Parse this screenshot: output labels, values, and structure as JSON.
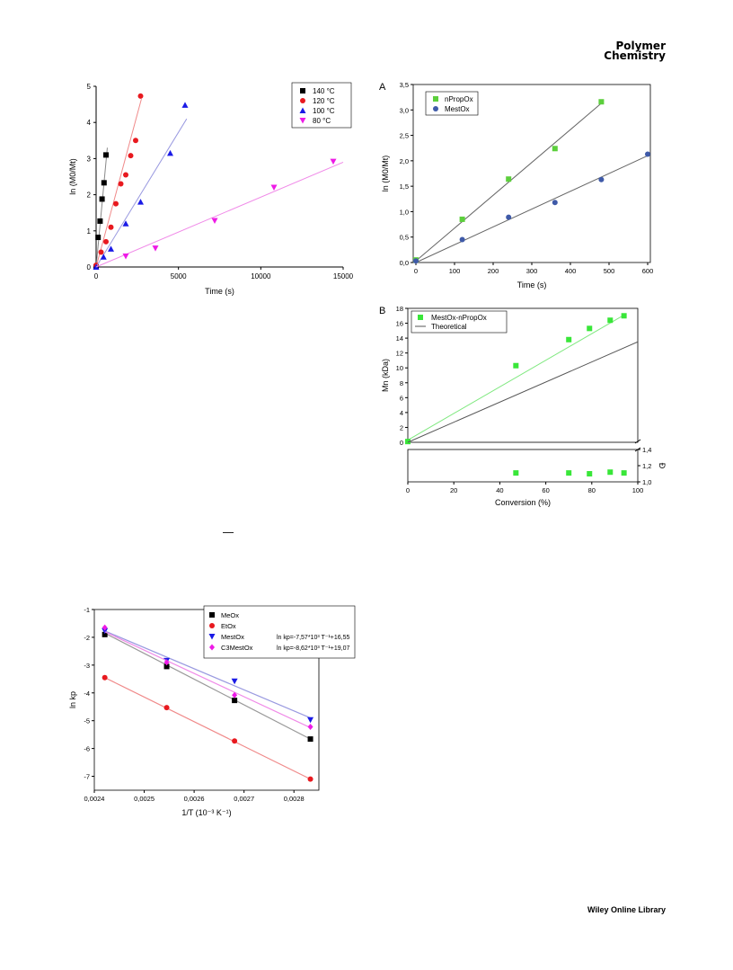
{
  "header": {
    "journal_line1": "Polymer",
    "journal_line2": "Chemistry"
  },
  "footer": {
    "publisher": "Wiley Online Library"
  },
  "chart_data": [
    {
      "id": "c1",
      "type": "scatter",
      "xlabel": "Time (s)",
      "ylabel": "ln (M0/Mt)",
      "xlim": [
        0,
        15000
      ],
      "ylim": [
        0,
        5
      ],
      "xticks": [
        0,
        5000,
        10000,
        15000
      ],
      "yticks": [
        0,
        1,
        2,
        3,
        4,
        5
      ],
      "legend_position": "top-right",
      "series": [
        {
          "name": "140 °C",
          "color": "#000000",
          "line_color": "#888888",
          "marker": "square",
          "x": [
            0,
            120,
            240,
            360,
            480,
            600
          ],
          "y": [
            0.0,
            0.82,
            1.27,
            1.88,
            2.33,
            3.1
          ],
          "fit": [
            [
              0,
              0
            ],
            [
              680,
              3.3
            ]
          ]
        },
        {
          "name": "120 °C",
          "color": "#e8191f",
          "line_color": "#f08a8a",
          "marker": "circle",
          "x": [
            0,
            300,
            600,
            900,
            1200,
            1500,
            1800,
            2100,
            2400,
            2700
          ],
          "y": [
            0.05,
            0.41,
            0.7,
            1.1,
            1.75,
            2.3,
            2.55,
            3.08,
            3.5,
            4.73
          ],
          "fit": [
            [
              0,
              0
            ],
            [
              2750,
              4.65
            ]
          ]
        },
        {
          "name": "100 °C",
          "color": "#1a1ae6",
          "line_color": "#9a9ae0",
          "marker": "triangle",
          "x": [
            0,
            450,
            900,
            1800,
            2700,
            4500,
            5400
          ],
          "y": [
            0.0,
            0.28,
            0.5,
            1.2,
            1.8,
            3.15,
            4.48
          ],
          "fit": [
            [
              0,
              0
            ],
            [
              5500,
              4.1
            ]
          ]
        },
        {
          "name": "80 °C",
          "color": "#ee1ae6",
          "line_color": "#f08ae8",
          "marker": "triangle-down",
          "x": [
            1800,
            3600,
            7200,
            10800,
            14400
          ],
          "y": [
            0.3,
            0.52,
            1.28,
            2.2,
            2.92
          ],
          "fit": [
            [
              0,
              0
            ],
            [
              15000,
              2.9
            ]
          ]
        }
      ]
    },
    {
      "id": "c2",
      "panel_label": "A",
      "type": "scatter",
      "xlabel": "Time (s)",
      "ylabel": "ln (M0/Mt)",
      "xlim": [
        0,
        600
      ],
      "ylim": [
        0,
        3.5
      ],
      "xticks": [
        0,
        100,
        200,
        300,
        400,
        500,
        600
      ],
      "yticks": [
        0,
        0.5,
        1,
        1.5,
        2,
        2.5,
        3,
        3.5
      ],
      "ytick_labels": [
        "0,0",
        "0,5",
        "1,0",
        "1,5",
        "2,0",
        "2,5",
        "3,0",
        "3,5"
      ],
      "legend_position": "top-left",
      "series": [
        {
          "name": "nPropOx",
          "color": "#5ccf3c",
          "line_color": "#666666",
          "marker": "square",
          "x": [
            0,
            120,
            240,
            360,
            480
          ],
          "y": [
            0.05,
            0.85,
            1.64,
            2.24,
            3.16
          ],
          "fit": [
            [
              0,
              0.03
            ],
            [
              480,
              3.13
            ]
          ]
        },
        {
          "name": "MestOx",
          "color": "#3f5aa8",
          "line_color": "#666666",
          "marker": "circle",
          "x": [
            0,
            120,
            240,
            360,
            480,
            600
          ],
          "y": [
            0.03,
            0.45,
            0.89,
            1.18,
            1.63,
            2.13
          ],
          "fit": [
            [
              0,
              0.0
            ],
            [
              600,
              2.1
            ]
          ]
        }
      ]
    },
    {
      "id": "c3",
      "panel_label": "B",
      "type": "scatter",
      "xlabel": "Conversion (%)",
      "ylabel": "Mn (kDa)",
      "ylabel_right": "Đ",
      "xlim": [
        0,
        100
      ],
      "ylim_top": [
        0,
        18
      ],
      "ylim_bottom": [
        1.0,
        1.4
      ],
      "xticks": [
        0,
        20,
        40,
        60,
        80,
        100
      ],
      "yticks_top": [
        0,
        2,
        4,
        6,
        8,
        10,
        12,
        14,
        16,
        18
      ],
      "yticks_bottom": [
        1.0,
        1.2,
        1.4
      ],
      "ytick_labels_bottom": [
        "1,0",
        "1,2",
        "1,4"
      ],
      "legend_position": "top-left",
      "series": [
        {
          "name": "MestOx-nPropOx",
          "color": "#39e639",
          "line_color": "#7ee87e",
          "marker": "square",
          "x": [
            0,
            47,
            70,
            79,
            88,
            94
          ],
          "y": [
            0.1,
            10.3,
            13.8,
            15.3,
            16.4,
            17.0
          ],
          "fit": [
            [
              0,
              0.3
            ],
            [
              94,
              17.1
            ]
          ]
        },
        {
          "name": "Theoretical",
          "color": "#555555",
          "line_color": "#555555",
          "marker": "none",
          "fit": [
            [
              0,
              0
            ],
            [
              100,
              13.5
            ]
          ]
        }
      ],
      "dispersity": {
        "x": [
          47,
          70,
          79,
          88,
          94
        ],
        "y": [
          1.11,
          1.11,
          1.1,
          1.12,
          1.11
        ],
        "color": "#39e639"
      }
    },
    {
      "id": "c4",
      "type": "scatter",
      "xlabel": "1/T (10⁻³ K⁻¹)",
      "ylabel": "ln kp",
      "xlim": [
        0.0024,
        0.00285
      ],
      "ylim": [
        -7.5,
        -1
      ],
      "xticks": [
        0.0024,
        0.0025,
        0.0026,
        0.0027,
        0.0028
      ],
      "xtick_labels": [
        "0,0024",
        "0,0025",
        "0,0026",
        "0,0027",
        "0,0028"
      ],
      "yticks": [
        -7,
        -6,
        -5,
        -4,
        -3,
        -2,
        -1
      ],
      "legend_position": "top-right",
      "series": [
        {
          "name": "MeOx",
          "legend_extra": "",
          "color": "#000000",
          "line_color": "#999999",
          "marker": "square",
          "x": [
            0.002421,
            0.002545,
            0.002681,
            0.002833
          ],
          "y": [
            -1.9,
            -3.05,
            -4.27,
            -5.66
          ],
          "fit": [
            [
              0.002421,
              -1.85
            ],
            [
              0.002833,
              -5.66
            ]
          ]
        },
        {
          "name": "EtOx",
          "legend_extra": "",
          "color": "#e8191f",
          "line_color": "#f08a8a",
          "marker": "circle",
          "x": [
            0.002421,
            0.002545,
            0.002681,
            0.002833
          ],
          "y": [
            -3.45,
            -4.53,
            -5.73,
            -7.1
          ],
          "fit": [
            [
              0.002421,
              -3.45
            ],
            [
              0.002833,
              -7.1
            ]
          ]
        },
        {
          "name": "MestOx",
          "legend_extra": "ln kp=-7,57*10³ T⁻¹+16,55",
          "color": "#1a1ae6",
          "line_color": "#9a9ae0",
          "marker": "triangle-down",
          "x": [
            0.002421,
            0.002545,
            0.002681,
            0.002833
          ],
          "y": [
            -1.77,
            -2.84,
            -3.58,
            -4.97
          ],
          "fit": [
            [
              0.002421,
              -1.77
            ],
            [
              0.002833,
              -4.9
            ]
          ]
        },
        {
          "name": "C3MestOx",
          "legend_extra": "ln kp=-8,62*10³ T⁻¹+19,07",
          "color": "#ee1ae6",
          "line_color": "#f08ae8",
          "marker": "diamond",
          "x": [
            0.002421,
            0.002545,
            0.002681,
            0.002833
          ],
          "y": [
            -1.65,
            -2.9,
            -4.08,
            -5.22
          ],
          "fit": [
            [
              0.002421,
              -1.8
            ],
            [
              0.002833,
              -5.25
            ]
          ]
        }
      ]
    }
  ]
}
